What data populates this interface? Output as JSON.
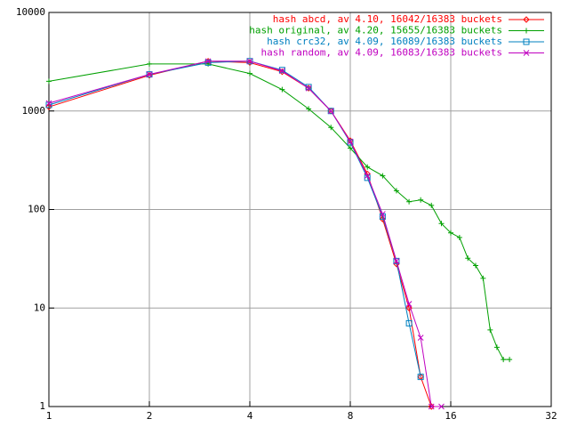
{
  "chart_data": {
    "type": "line",
    "xscale": "log",
    "yscale": "log",
    "grid": true,
    "legend": "top-right",
    "xlim": [
      1,
      32
    ],
    "xticks": [
      1,
      2,
      4,
      8,
      16,
      32
    ],
    "ylim": [
      1,
      10000
    ],
    "yticks": [
      1,
      10,
      100,
      1000,
      10000
    ],
    "series": [
      {
        "name": "hash abcd, av 4.10, 16042/16383 buckets",
        "color": "#ff0000",
        "marker": "diamond",
        "x": [
          1,
          2,
          3,
          4,
          5,
          6,
          7,
          8,
          9,
          10,
          11,
          12,
          13,
          14
        ],
        "values": [
          1100,
          2300,
          3200,
          3100,
          2500,
          1700,
          1000,
          500,
          230,
          80,
          28,
          10,
          2,
          1
        ]
      },
      {
        "name": "hash original, av 4.20, 15655/16383 buckets",
        "color": "#00a000",
        "marker": "plus",
        "x": [
          1,
          2,
          3,
          4,
          5,
          6,
          7,
          8,
          9,
          10,
          11,
          12,
          13,
          14,
          15,
          16,
          17,
          18,
          19,
          20,
          21,
          22,
          23,
          24
        ],
        "values": [
          2000,
          3000,
          3000,
          2400,
          1650,
          1050,
          680,
          420,
          270,
          220,
          155,
          120,
          125,
          110,
          72,
          58,
          52,
          32,
          27,
          20,
          6,
          4,
          3,
          3
        ]
      },
      {
        "name": "hash crc32, av 4.09, 16089/16383 buckets",
        "color": "#0080c0",
        "marker": "square",
        "x": [
          1,
          2,
          3,
          4,
          5,
          6,
          7,
          8,
          9,
          10,
          11,
          12,
          13
        ],
        "values": [
          1150,
          2350,
          3100,
          3200,
          2600,
          1750,
          1000,
          480,
          210,
          85,
          30,
          7,
          2
        ]
      },
      {
        "name": "hash random, av 4.09, 16083/16383 buckets",
        "color": "#c000c0",
        "marker": "cross",
        "x": [
          1,
          2,
          3,
          4,
          5,
          6,
          7,
          8,
          9,
          10,
          11,
          12,
          13,
          14,
          15
        ],
        "values": [
          1200,
          2350,
          3200,
          3200,
          2550,
          1700,
          1000,
          490,
          220,
          90,
          30,
          11,
          5,
          1,
          1
        ]
      }
    ]
  }
}
